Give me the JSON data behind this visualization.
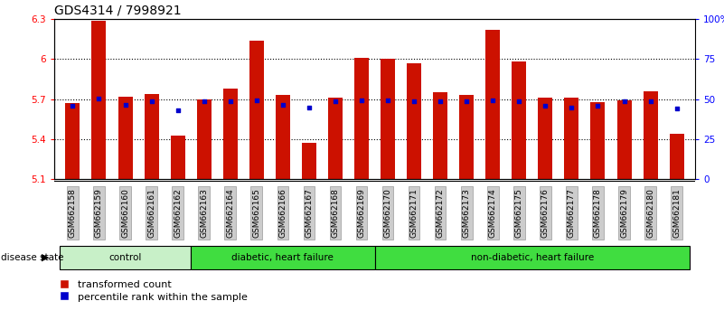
{
  "title": "GDS4314 / 7998921",
  "samples": [
    "GSM662158",
    "GSM662159",
    "GSM662160",
    "GSM662161",
    "GSM662162",
    "GSM662163",
    "GSM662164",
    "GSM662165",
    "GSM662166",
    "GSM662167",
    "GSM662168",
    "GSM662169",
    "GSM662170",
    "GSM662171",
    "GSM662172",
    "GSM662173",
    "GSM662174",
    "GSM662175",
    "GSM662176",
    "GSM662177",
    "GSM662178",
    "GSM662179",
    "GSM662180",
    "GSM662181"
  ],
  "red_values": [
    5.67,
    6.29,
    5.72,
    5.74,
    5.43,
    5.7,
    5.78,
    6.14,
    5.73,
    5.37,
    5.71,
    6.01,
    6.0,
    5.97,
    5.75,
    5.73,
    6.22,
    5.98,
    5.71,
    5.71,
    5.68,
    5.69,
    5.76,
    5.44
  ],
  "blue_values": [
    46.0,
    50.5,
    46.5,
    48.5,
    43.0,
    48.5,
    48.5,
    49.5,
    46.5,
    44.5,
    48.5,
    49.5,
    49.5,
    48.5,
    48.5,
    48.5,
    49.5,
    48.5,
    46.0,
    45.0,
    46.0,
    48.5,
    48.5,
    44.0
  ],
  "ylim_left": [
    5.1,
    6.3
  ],
  "yticks_left": [
    5.1,
    5.4,
    5.7,
    6.0,
    6.3
  ],
  "ytick_labels_left": [
    "5.1",
    "5.4",
    "5.7",
    "6",
    "6.3"
  ],
  "ylim_right": [
    0,
    100
  ],
  "yticks_right": [
    0,
    25,
    50,
    75,
    100
  ],
  "ytick_labels_right": [
    "0",
    "25",
    "50",
    "75",
    "100%"
  ],
  "groups": [
    {
      "label": "control",
      "start": 0,
      "end": 5,
      "color": "#c8f0c8"
    },
    {
      "label": "diabetic, heart failure",
      "start": 5,
      "end": 12,
      "color": "#40dd40"
    },
    {
      "label": "non-diabetic, heart failure",
      "start": 12,
      "end": 24,
      "color": "#40dd40"
    }
  ],
  "bar_color": "#cc1100",
  "blue_color": "#0000cc",
  "bar_width": 0.55,
  "legend_red": "transformed count",
  "legend_blue": "percentile rank within the sample",
  "disease_state_label": "disease state",
  "title_fontsize": 10,
  "tick_fontsize": 7.5,
  "sample_fontsize": 6.5
}
